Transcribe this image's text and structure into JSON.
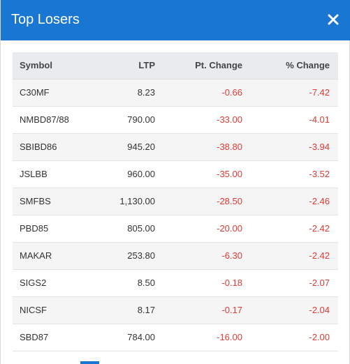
{
  "header": {
    "title": "Top Losers",
    "close_icon": "close-icon"
  },
  "colors": {
    "header_bg": "#1976d2",
    "negative": "#e53935",
    "table_header_bg": "#e9ecef",
    "row_stripe": "#f5f5f5"
  },
  "table": {
    "columns": [
      "Symbol",
      "LTP",
      "Pt. Change",
      "% Change"
    ],
    "rows": [
      {
        "symbol": "C30MF",
        "ltp": "8.23",
        "pt_change": "-0.66",
        "pct_change": "-7.42"
      },
      {
        "symbol": "NMBD87/88",
        "ltp": "790.00",
        "pt_change": "-33.00",
        "pct_change": "-4.01"
      },
      {
        "symbol": "SBIBD86",
        "ltp": "945.20",
        "pt_change": "-38.80",
        "pct_change": "-3.94"
      },
      {
        "symbol": "JSLBB",
        "ltp": "960.00",
        "pt_change": "-35.00",
        "pct_change": "-3.52"
      },
      {
        "symbol": "SMFBS",
        "ltp": "1,130.00",
        "pt_change": "-28.50",
        "pct_change": "-2.46"
      },
      {
        "symbol": "PBD85",
        "ltp": "805.00",
        "pt_change": "-20.00",
        "pct_change": "-2.42"
      },
      {
        "symbol": "MAKAR",
        "ltp": "253.80",
        "pt_change": "-6.30",
        "pct_change": "-2.42"
      },
      {
        "symbol": "SIGS2",
        "ltp": "8.50",
        "pt_change": "-0.18",
        "pct_change": "-2.07"
      },
      {
        "symbol": "NICSF",
        "ltp": "8.17",
        "pt_change": "-0.17",
        "pct_change": "-2.04"
      },
      {
        "symbol": "SBD87",
        "ltp": "784.00",
        "pt_change": "-16.00",
        "pct_change": "-2.00"
      }
    ]
  }
}
